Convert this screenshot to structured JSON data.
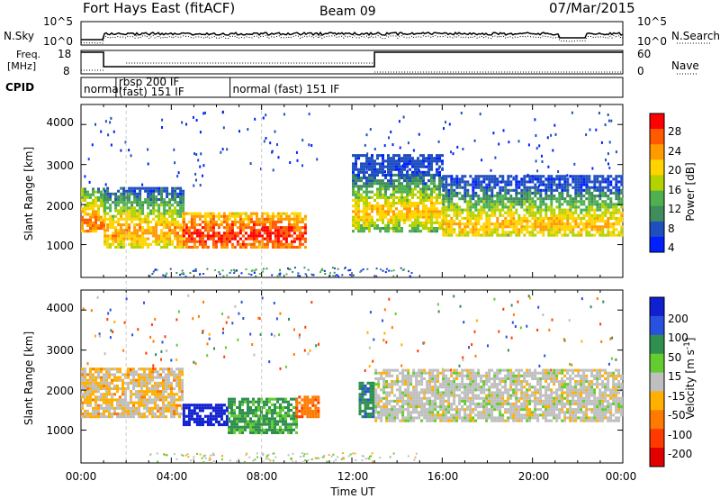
{
  "header": {
    "title": "Fort Hays East (fitACF)",
    "beam": "Beam 09",
    "date": "07/Mar/2015"
  },
  "panels": {
    "noise": {
      "left_label": "N.Sky",
      "right_label": "N.Search",
      "left_ticks": [
        "10^5",
        "10^0"
      ],
      "right_ticks": [
        "10^5",
        "10^0"
      ]
    },
    "freq": {
      "left_label_1": "Freq.",
      "left_label_2": "[MHz]",
      "right_label": "Nave",
      "left_ticks": [
        "18",
        "8"
      ],
      "right_ticks": [
        "60",
        "0"
      ]
    },
    "cpid": {
      "label": "CPID",
      "segments": [
        {
          "x_hour": 0.0,
          "text": "normal"
        },
        {
          "x_hour": 1.55,
          "text": "rbsp 200 IF"
        },
        {
          "x_hour": 1.55,
          "text": "(fast) 151 IF"
        },
        {
          "x_hour": 6.6,
          "text": "normal (fast) 151 IF"
        }
      ]
    }
  },
  "colorbars": {
    "power": {
      "label": "Power [dB]",
      "ticks": [
        "28",
        "24",
        "20",
        "16",
        "12",
        "8",
        "4"
      ],
      "colors": [
        "#ff0000",
        "#ff5a00",
        "#ff9a00",
        "#ffd400",
        "#b4d200",
        "#4fb04f",
        "#3f8c5c",
        "#1f4fbf",
        "#0020ff"
      ]
    },
    "velocity": {
      "label_main": "Velocity [m s",
      "label_sup": "-1",
      "label_end": "]",
      "ticks": [
        "200",
        "100",
        "50",
        "15",
        "-15",
        "-50",
        "-100",
        "-200"
      ],
      "colors": [
        "#1020d0",
        "#2a50e0",
        "#2f8f4f",
        "#63cc30",
        "#bfbfbf",
        "#ffb000",
        "#ff7a00",
        "#ff3a00",
        "#e00000"
      ]
    }
  },
  "axes": {
    "ylabel": "Slant Range [km]",
    "xlabel": "Time UT",
    "xticks": [
      "00:00",
      "04:00",
      "08:00",
      "12:00",
      "16:00",
      "20:00",
      "00:00"
    ],
    "yticks": [
      "1000",
      "2000",
      "3000",
      "4000"
    ]
  },
  "chart_data": [
    {
      "type": "heatmap",
      "title": "",
      "xlabel": "",
      "ylabel": "Slant Range [km]",
      "xlim": [
        0,
        24
      ],
      "ylim": [
        180,
        4500
      ],
      "x": "time UT (hours)",
      "colorbar": "Power [dB]",
      "bands": [
        {
          "t_start": 0.0,
          "t_end": 1.0,
          "range_low": 1300,
          "range_high": 2400,
          "peak_range": 1500,
          "power_peak": 24
        },
        {
          "t_start": 1.0,
          "t_end": 4.5,
          "range_low": 900,
          "range_high": 2400,
          "peak_range": 1300,
          "power_peak": 22
        },
        {
          "t_start": 4.5,
          "t_end": 10.0,
          "range_low": 900,
          "range_high": 1800,
          "peak_range": 1200,
          "power_peak": 28
        },
        {
          "t_start": 12.0,
          "t_end": 16.0,
          "range_low": 1300,
          "range_high": 3200,
          "peak_range": 1800,
          "power_peak": 20
        },
        {
          "t_start": 16.0,
          "t_end": 24.0,
          "range_low": 1200,
          "range_high": 2700,
          "peak_range": 1450,
          "power_peak": 20
        }
      ]
    },
    {
      "type": "heatmap",
      "title": "",
      "xlabel": "Time UT",
      "ylabel": "Slant Range [km]",
      "xlim": [
        0,
        24
      ],
      "ylim": [
        180,
        4500
      ],
      "colorbar": "Velocity [m s-1]",
      "bands": [
        {
          "t_start": 0.0,
          "t_end": 4.5,
          "range_low": 1300,
          "range_high": 2500,
          "velocity": -15
        },
        {
          "t_start": 4.5,
          "t_end": 6.5,
          "range_low": 1100,
          "range_high": 1600,
          "velocity": 200
        },
        {
          "t_start": 6.5,
          "t_end": 9.5,
          "range_low": 900,
          "range_high": 1800,
          "velocity": 40
        },
        {
          "t_start": 9.5,
          "t_end": 10.5,
          "range_low": 1300,
          "range_high": 1800,
          "velocity": -60
        },
        {
          "t_start": 12.3,
          "t_end": 13.0,
          "range_low": 1300,
          "range_high": 2200,
          "velocity": 60
        },
        {
          "t_start": 13.0,
          "t_end": 24.0,
          "range_low": 1200,
          "range_high": 2500,
          "velocity": 0
        }
      ]
    }
  ]
}
